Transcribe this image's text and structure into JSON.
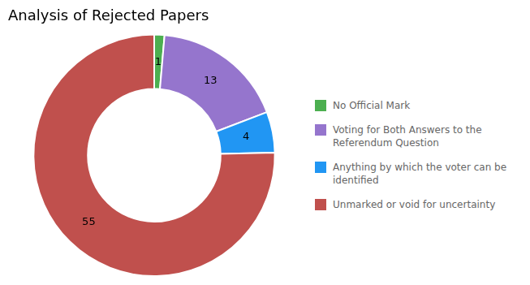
{
  "chart_data": {
    "type": "doughnut",
    "title": "Analysis of Rejected Papers",
    "categories": [
      "No Official Mark",
      "Voting for Both Answers to the\nReferendum Question",
      "Anything by which the voter can be\nidentified",
      "Unmarked or void for uncertainty"
    ],
    "values": [
      1,
      13,
      4,
      55
    ],
    "colors": [
      "#4caf50",
      "#9575cd",
      "#2196f3",
      "#c0504d"
    ],
    "data_labels": true,
    "legend": "right"
  }
}
